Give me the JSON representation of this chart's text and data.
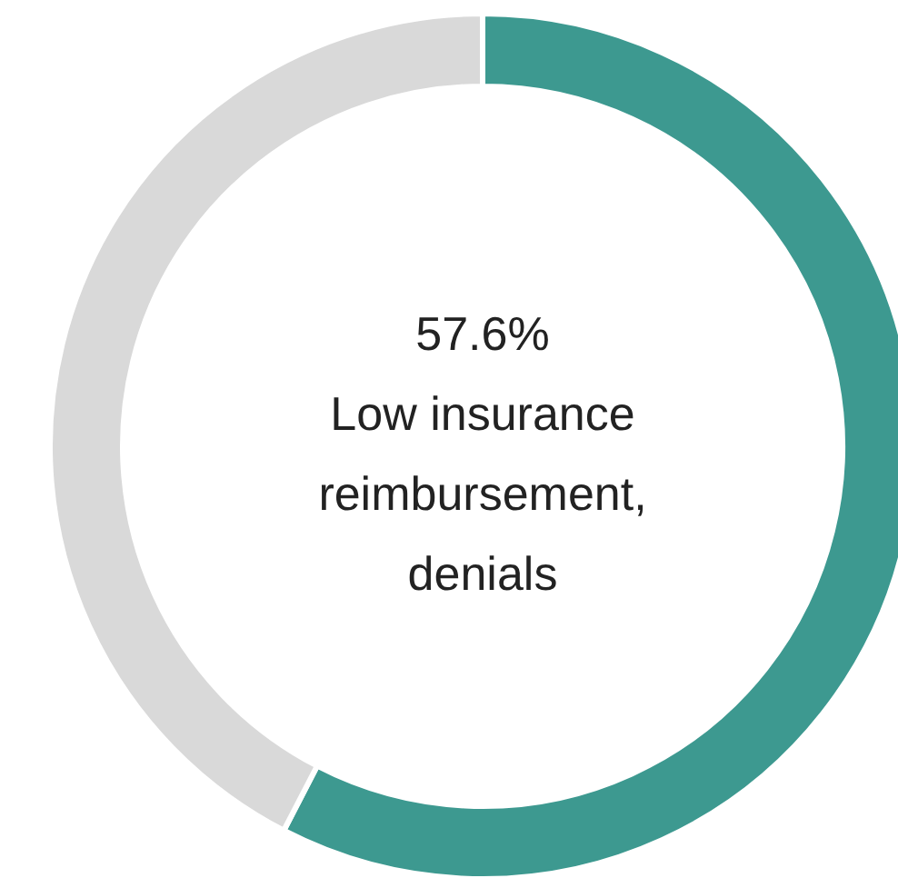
{
  "chart_data": {
    "type": "donut",
    "categories": [
      "Low insurance reimbursement, denials",
      null
    ],
    "values": [
      57.6,
      42.4
    ],
    "colors": [
      "#3d9990",
      "#d9d9d9"
    ],
    "value_labels": [
      "57.6%",
      null
    ]
  }
}
